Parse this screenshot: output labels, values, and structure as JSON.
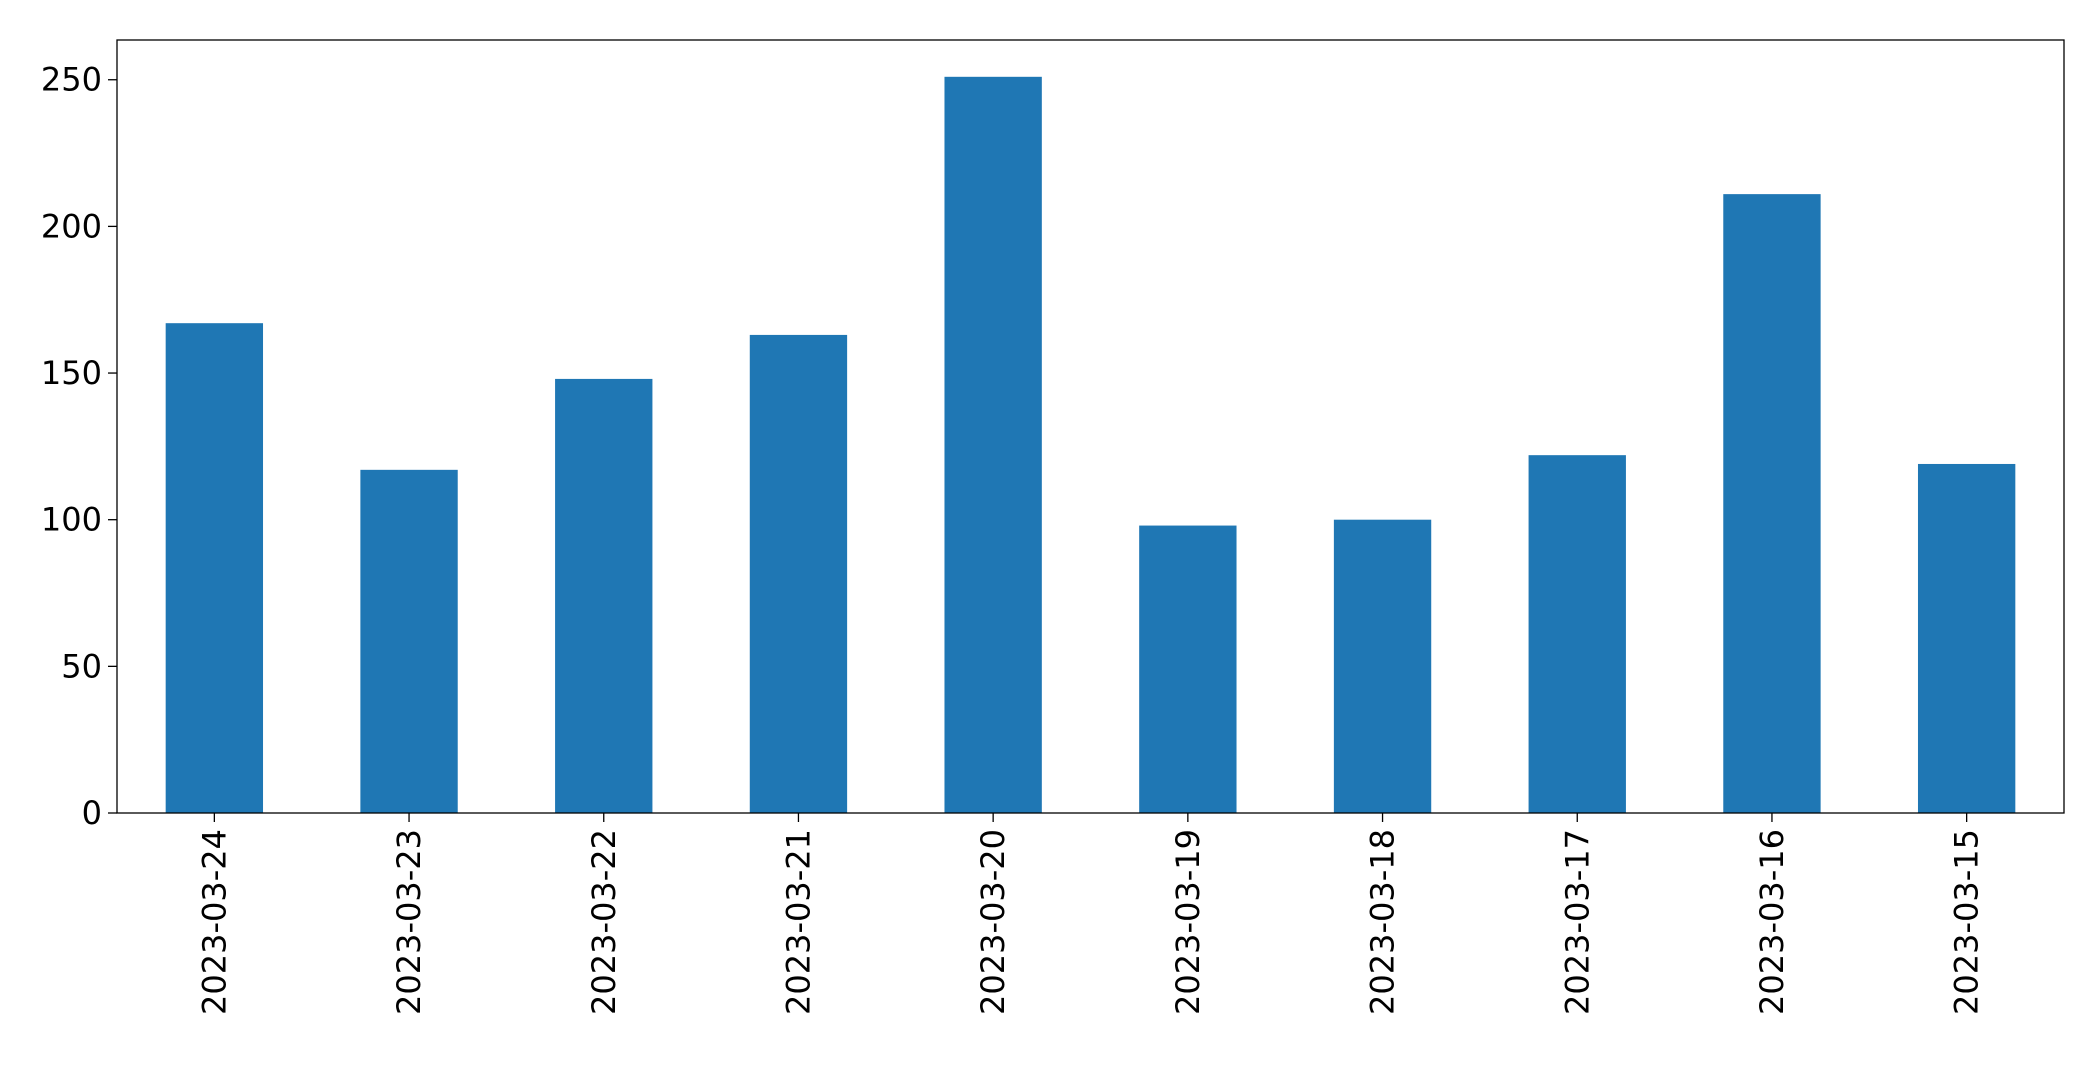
{
  "chart_data": {
    "type": "bar",
    "categories": [
      "2023-03-24",
      "2023-03-23",
      "2023-03-22",
      "2023-03-21",
      "2023-03-20",
      "2023-03-19",
      "2023-03-18",
      "2023-03-17",
      "2023-03-16",
      "2023-03-15"
    ],
    "values": [
      167,
      117,
      148,
      163,
      251,
      98,
      100,
      122,
      211,
      119
    ],
    "color": "#1f77b4",
    "ylim": [
      0,
      263.55
    ],
    "yticks": [
      0,
      50,
      100,
      150,
      200,
      250
    ],
    "grid": false
  }
}
